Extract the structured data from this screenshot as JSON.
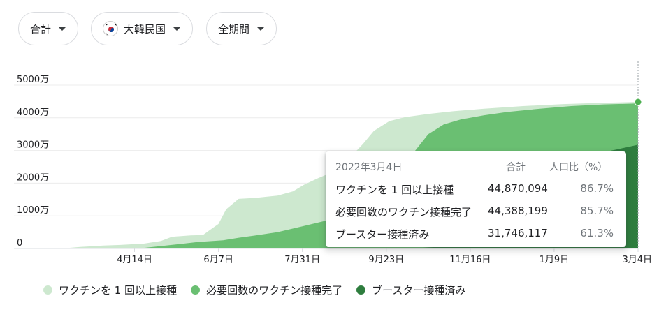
{
  "filters": {
    "measure": {
      "label": "合計"
    },
    "region": {
      "label": "大韓民国",
      "flag_icon": "south-korea-flag-icon"
    },
    "period": {
      "label": "全期間"
    }
  },
  "chart_data": {
    "type": "area",
    "stacked": false,
    "y_ticks": [
      "0",
      "1000万",
      "2000万",
      "3000万",
      "4000万",
      "5000万"
    ],
    "y_tick_values": [
      0,
      10000000,
      20000000,
      30000000,
      40000000,
      50000000
    ],
    "ylim": [
      0,
      50000000
    ],
    "x_tick_labels": [
      "4月14日",
      "6月7日",
      "7月31日",
      "9月23日",
      "11月16日",
      "1月9日",
      "3月4日"
    ],
    "x_tick_dates": [
      "2021-04-14",
      "2021-06-07",
      "2021-07-31",
      "2021-09-23",
      "2021-11-16",
      "2022-01-09",
      "2022-03-04"
    ],
    "xlim": [
      "2021-02-26",
      "2022-03-04"
    ],
    "grid": true,
    "legend_position": "bottom",
    "series": [
      {
        "name": "ワクチンを 1 回以上接種",
        "color": "#cde8cf",
        "points": [
          [
            "2021-02-26",
            0
          ],
          [
            "2021-03-10",
            500000
          ],
          [
            "2021-03-25",
            900000
          ],
          [
            "2021-04-05",
            1100000
          ],
          [
            "2021-04-20",
            1500000
          ],
          [
            "2021-05-01",
            2300000
          ],
          [
            "2021-05-08",
            3600000
          ],
          [
            "2021-05-20",
            4000000
          ],
          [
            "2021-05-28",
            4100000
          ],
          [
            "2021-06-01",
            5500000
          ],
          [
            "2021-06-07",
            7500000
          ],
          [
            "2021-06-12",
            12000000
          ],
          [
            "2021-06-20",
            15200000
          ],
          [
            "2021-07-01",
            15500000
          ],
          [
            "2021-07-15",
            16200000
          ],
          [
            "2021-07-25",
            17500000
          ],
          [
            "2021-08-01",
            19500000
          ],
          [
            "2021-08-10",
            21500000
          ],
          [
            "2021-08-20",
            23500000
          ],
          [
            "2021-08-31",
            28000000
          ],
          [
            "2021-09-08",
            32000000
          ],
          [
            "2021-09-15",
            36000000
          ],
          [
            "2021-09-25",
            39000000
          ],
          [
            "2021-10-05",
            40200000
          ],
          [
            "2021-10-20",
            41200000
          ],
          [
            "2021-11-05",
            42000000
          ],
          [
            "2021-11-25",
            42800000
          ],
          [
            "2021-12-20",
            43600000
          ],
          [
            "2022-01-15",
            44200000
          ],
          [
            "2022-02-10",
            44600000
          ],
          [
            "2022-03-04",
            44870094
          ]
        ]
      },
      {
        "name": "必要回数のワクチン接種完了",
        "color": "#6abf72",
        "points": [
          [
            "2021-02-26",
            0
          ],
          [
            "2021-04-01",
            0
          ],
          [
            "2021-04-20",
            200000
          ],
          [
            "2021-05-10",
            1200000
          ],
          [
            "2021-05-25",
            2000000
          ],
          [
            "2021-06-10",
            2500000
          ],
          [
            "2021-06-20",
            3300000
          ],
          [
            "2021-07-01",
            4000000
          ],
          [
            "2021-07-15",
            5000000
          ],
          [
            "2021-07-31",
            6800000
          ],
          [
            "2021-08-15",
            8500000
          ],
          [
            "2021-08-31",
            10000000
          ],
          [
            "2021-09-10",
            14000000
          ],
          [
            "2021-09-23",
            18000000
          ],
          [
            "2021-10-01",
            22000000
          ],
          [
            "2021-10-10",
            29000000
          ],
          [
            "2021-10-20",
            35000000
          ],
          [
            "2021-10-30",
            38000000
          ],
          [
            "2021-11-10",
            39500000
          ],
          [
            "2021-11-25",
            40800000
          ],
          [
            "2021-12-10",
            41800000
          ],
          [
            "2021-12-31",
            42800000
          ],
          [
            "2022-01-20",
            43600000
          ],
          [
            "2022-02-10",
            44100000
          ],
          [
            "2022-03-04",
            44388199
          ]
        ]
      },
      {
        "name": "ブースター接種済み",
        "color": "#2e7d3e",
        "points": [
          [
            "2021-02-26",
            0
          ],
          [
            "2021-10-10",
            0
          ],
          [
            "2021-10-25",
            500000
          ],
          [
            "2021-11-10",
            1500000
          ],
          [
            "2021-11-25",
            3000000
          ],
          [
            "2021-12-05",
            6000000
          ],
          [
            "2021-12-15",
            10000000
          ],
          [
            "2021-12-25",
            15000000
          ],
          [
            "2022-01-05",
            19500000
          ],
          [
            "2022-01-15",
            23500000
          ],
          [
            "2022-01-25",
            26500000
          ],
          [
            "2022-02-05",
            28500000
          ],
          [
            "2022-02-15",
            30000000
          ],
          [
            "2022-02-25",
            31000000
          ],
          [
            "2022-03-04",
            31746117
          ]
        ]
      }
    ]
  },
  "tooltip": {
    "date": "2022年3月4日",
    "col_total": "合計",
    "col_pct": "人口比（%）",
    "rows": [
      {
        "label": "ワクチンを 1 回以上接種",
        "total": "44,870,094",
        "pct": "86.7%"
      },
      {
        "label": "必要回数のワクチン接種完了",
        "total": "44,388,199",
        "pct": "85.7%"
      },
      {
        "label": "ブースター接種済み",
        "total": "31,746,117",
        "pct": "61.3%"
      }
    ]
  },
  "legend": {
    "items": [
      {
        "label": "ワクチンを 1 回以上接種",
        "color": "#cde8cf"
      },
      {
        "label": "必要回数のワクチン接種完了",
        "color": "#6abf72"
      },
      {
        "label": "ブースター接種済み",
        "color": "#2e7d3e"
      }
    ]
  }
}
